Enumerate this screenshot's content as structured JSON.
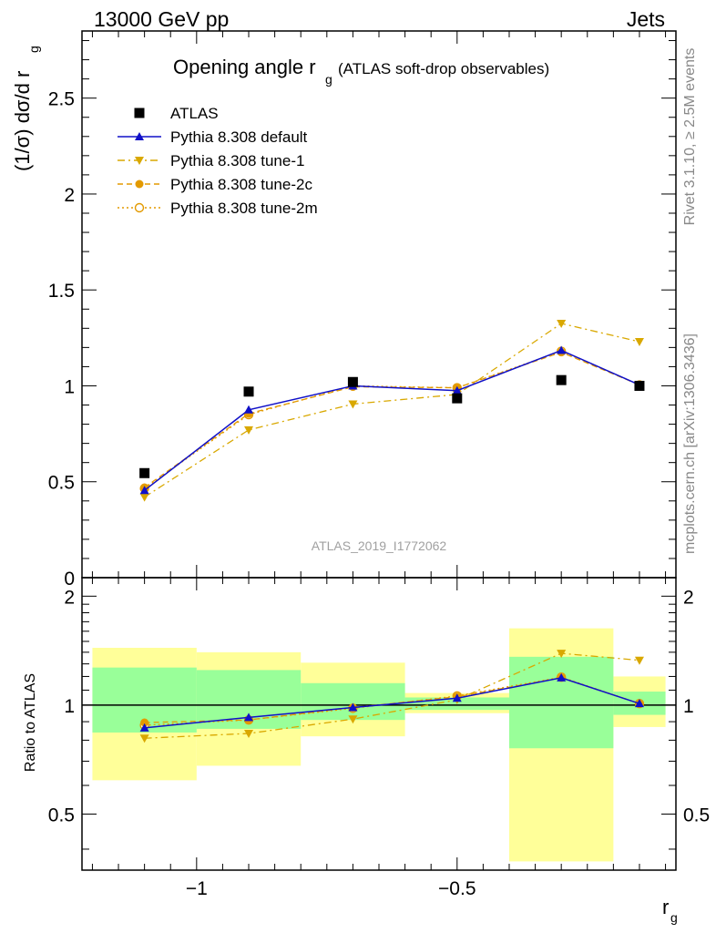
{
  "header": {
    "left": "13000 GeV pp",
    "right": "Jets"
  },
  "side_labels": {
    "rivet": "Rivet 3.1.10, ≥ 2.5M events",
    "mcplots": "mcplots.cern.ch [arXiv:1306.3436]"
  },
  "chart_data": {
    "type": "line",
    "title_main": "Opening angle r",
    "title_sub": "g",
    "title_extra": "(ATLAS soft-drop observables)",
    "ylabel_main": "(1/σ) dσ/d r",
    "ylabel_sub": "g",
    "xlabel_main": "r",
    "xlabel_sub": "g",
    "ratio_ylabel": "Ratio to ATLAS",
    "watermark": "ATLAS_2019_I1772062",
    "xlim": [
      -1.22,
      -0.08
    ],
    "ylim": [
      0,
      2.85
    ],
    "ratio_ylim": [
      0.35,
      2.25
    ],
    "x_ticks": [
      -1,
      -0.5
    ],
    "x_tick_labels": [
      "−1",
      "−0.5"
    ],
    "y_ticks": [
      0.5,
      1,
      1.5,
      2,
      2.5
    ],
    "y_tick_labels": [
      "0.5",
      "1",
      "1.5",
      "2",
      "2.5"
    ],
    "y_zero_label": "0",
    "ratio_y_ticks": [
      0.5,
      1,
      2
    ],
    "ratio_y_tick_labels": [
      "0.5",
      "1",
      "2"
    ],
    "bins": [
      [
        -1.2,
        -1.0
      ],
      [
        -1.0,
        -0.8
      ],
      [
        -0.8,
        -0.6
      ],
      [
        -0.6,
        -0.4
      ],
      [
        -0.4,
        -0.2
      ],
      [
        -0.2,
        -0.1
      ]
    ],
    "x": [
      -1.1,
      -0.9,
      -0.7,
      -0.5,
      -0.3,
      -0.15
    ],
    "ratio_band_green": [
      [
        0.84,
        1.27
      ],
      [
        0.86,
        1.25
      ],
      [
        0.91,
        1.15
      ],
      [
        0.97,
        1.05
      ],
      [
        0.76,
        1.36
      ],
      [
        0.94,
        1.09
      ]
    ],
    "ratio_band_yellow": [
      [
        0.62,
        1.44
      ],
      [
        0.68,
        1.4
      ],
      [
        0.82,
        1.31
      ],
      [
        0.95,
        1.08
      ],
      [
        0.37,
        1.63
      ],
      [
        0.87,
        1.2
      ]
    ],
    "reference": {
      "name": "ATLAS",
      "values": [
        0.545,
        0.97,
        1.02,
        0.935,
        1.03,
        1.0
      ],
      "color": "#000000"
    },
    "series": [
      {
        "name": "Pythia 8.308 default",
        "values": [
          0.455,
          0.875,
          1.0,
          0.975,
          1.185,
          1.005
        ],
        "ratio": [
          0.865,
          0.925,
          0.985,
          1.045,
          1.19,
          1.01
        ],
        "color": "#1010c8",
        "marker": "triangle-up",
        "dash": ""
      },
      {
        "name": "Pythia 8.308 tune-1",
        "values": [
          0.42,
          0.77,
          0.905,
          0.955,
          1.325,
          1.23
        ],
        "ratio": [
          0.81,
          0.835,
          0.915,
          1.035,
          1.39,
          1.33
        ],
        "color": "#d9a800",
        "marker": "triangle-down",
        "dash": "8,4,2,4"
      },
      {
        "name": "Pythia 8.308 tune-2c",
        "values": [
          0.47,
          0.855,
          0.995,
          0.99,
          1.175,
          1.005
        ],
        "ratio": [
          0.895,
          0.91,
          0.985,
          1.055,
          1.19,
          1.01
        ],
        "color": "#e39a00",
        "marker": "circle",
        "dash": "6,4"
      },
      {
        "name": "Pythia 8.308 tune-2m",
        "values": [
          0.465,
          0.85,
          1.0,
          0.99,
          1.18,
          1.005
        ],
        "ratio": [
          0.88,
          0.91,
          0.98,
          1.06,
          1.195,
          1.01
        ],
        "color": "#e39a00",
        "marker": "circle-open",
        "dash": "2,3"
      }
    ]
  }
}
